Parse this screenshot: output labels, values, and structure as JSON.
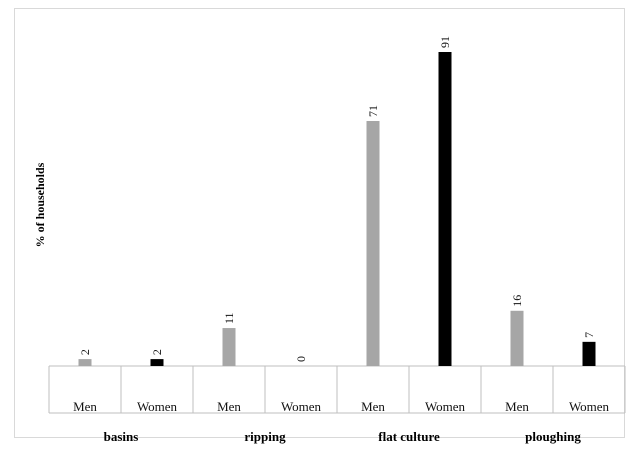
{
  "chart_data": {
    "type": "bar",
    "title": "",
    "xlabel": "",
    "ylabel": "% of households",
    "ylim": [
      0,
      100
    ],
    "grid": false,
    "legend": "none",
    "groups": [
      "basins",
      "ripping",
      "flat culture",
      "ploughing"
    ],
    "categories": [
      "Men",
      "Women",
      "Men",
      "Women",
      "Men",
      "Women",
      "Men",
      "Women"
    ],
    "values": [
      2,
      2,
      11,
      0,
      71,
      91,
      16,
      7
    ],
    "bar_colors": [
      "#a6a6a6",
      "#000000",
      "#a6a6a6",
      "#000000",
      "#a6a6a6",
      "#000000",
      "#a6a6a6",
      "#000000"
    ],
    "data_labels": [
      "2",
      "2",
      "11",
      "0",
      "71",
      "91",
      "16",
      "7"
    ]
  }
}
